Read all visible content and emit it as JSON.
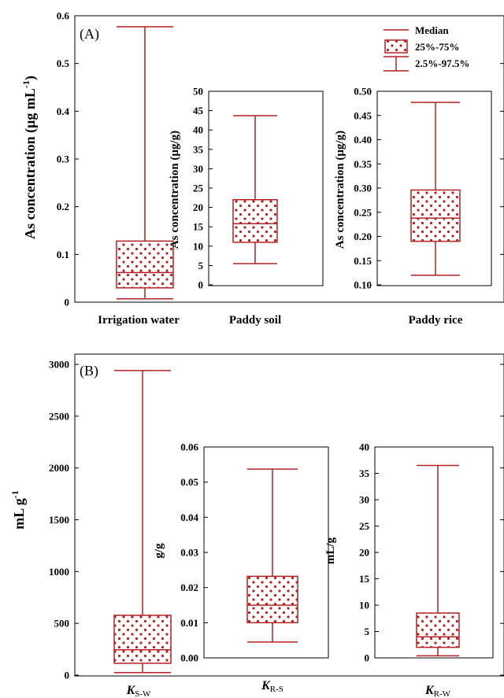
{
  "legend": {
    "median": "Median",
    "iqr": "25%-75%",
    "whisker": "2.5%-97.5%"
  },
  "colors": {
    "box": "#b22222",
    "dots": "#b22222",
    "axis": "#000000"
  },
  "chart_data": [
    {
      "type": "box",
      "panel": "(A)",
      "ylabel_parts": [
        "As concentration (μg mL",
        "-1",
        ")"
      ],
      "ylim": [
        0,
        0.6
      ],
      "yticks": [
        "0",
        "0.1",
        "0.2",
        "0.3",
        "0.4",
        "0.5",
        "0.6"
      ],
      "category": "Irrigation water",
      "stats": {
        "p2_5": 0.007,
        "q1": 0.03,
        "median": 0.062,
        "q3": 0.128,
        "p97_5": 0.577
      }
    },
    {
      "type": "box",
      "ylabel_parts": [
        "As concentration (μg/g)"
      ],
      "ylim": [
        0,
        50
      ],
      "yticks": [
        "0",
        "5",
        "10",
        "15",
        "20",
        "25",
        "30",
        "35",
        "40",
        "45",
        "50"
      ],
      "category": "Paddy soil",
      "stats": {
        "p2_5": 5.5,
        "q1": 11,
        "median": 15.8,
        "q3": 22,
        "p97_5": 43.7
      }
    },
    {
      "type": "box",
      "ylabel_parts": [
        "As concentration (μg/g)"
      ],
      "ylim": [
        0.1,
        0.5
      ],
      "yticks": [
        "0.10",
        "0.15",
        "0.20",
        "0.25",
        "0.30",
        "0.35",
        "0.40",
        "0.45",
        "0.50"
      ],
      "category": "Paddy rice",
      "stats": {
        "p2_5": 0.12,
        "q1": 0.19,
        "median": 0.238,
        "q3": 0.296,
        "p97_5": 0.477
      }
    },
    {
      "type": "box",
      "panel": "(B)",
      "ylabel_parts": [
        "mL g",
        "-1",
        ""
      ],
      "ylim": [
        0,
        3000
      ],
      "yticks": [
        "0",
        "500",
        "1000",
        "1500",
        "2000",
        "2500",
        "3000"
      ],
      "category_main": "K",
      "category_sub": "S-W",
      "stats": {
        "p2_5": 25,
        "q1": 115,
        "median": 245,
        "q3": 578,
        "p97_5": 2940
      }
    },
    {
      "type": "box",
      "ylabel_parts": [
        "g/g"
      ],
      "ylim": [
        0,
        0.06
      ],
      "yticks": [
        "0.00",
        "0.01",
        "0.02",
        "0.03",
        "0.04",
        "0.05",
        "0.06"
      ],
      "category_main": "K",
      "category_sub": "R-S",
      "stats": {
        "p2_5": 0.0045,
        "q1": 0.01,
        "median": 0.015,
        "q3": 0.0232,
        "p97_5": 0.0537
      }
    },
    {
      "type": "box",
      "ylabel_parts": [
        "mL/g"
      ],
      "ylim": [
        0,
        40
      ],
      "yticks": [
        "0",
        "5",
        "10",
        "15",
        "20",
        "25",
        "30",
        "35",
        "40"
      ],
      "category_main": "K",
      "category_sub": "R-W",
      "stats": {
        "p2_5": 0.4,
        "q1": 2,
        "median": 4,
        "q3": 8.5,
        "p97_5": 36.5
      }
    }
  ]
}
